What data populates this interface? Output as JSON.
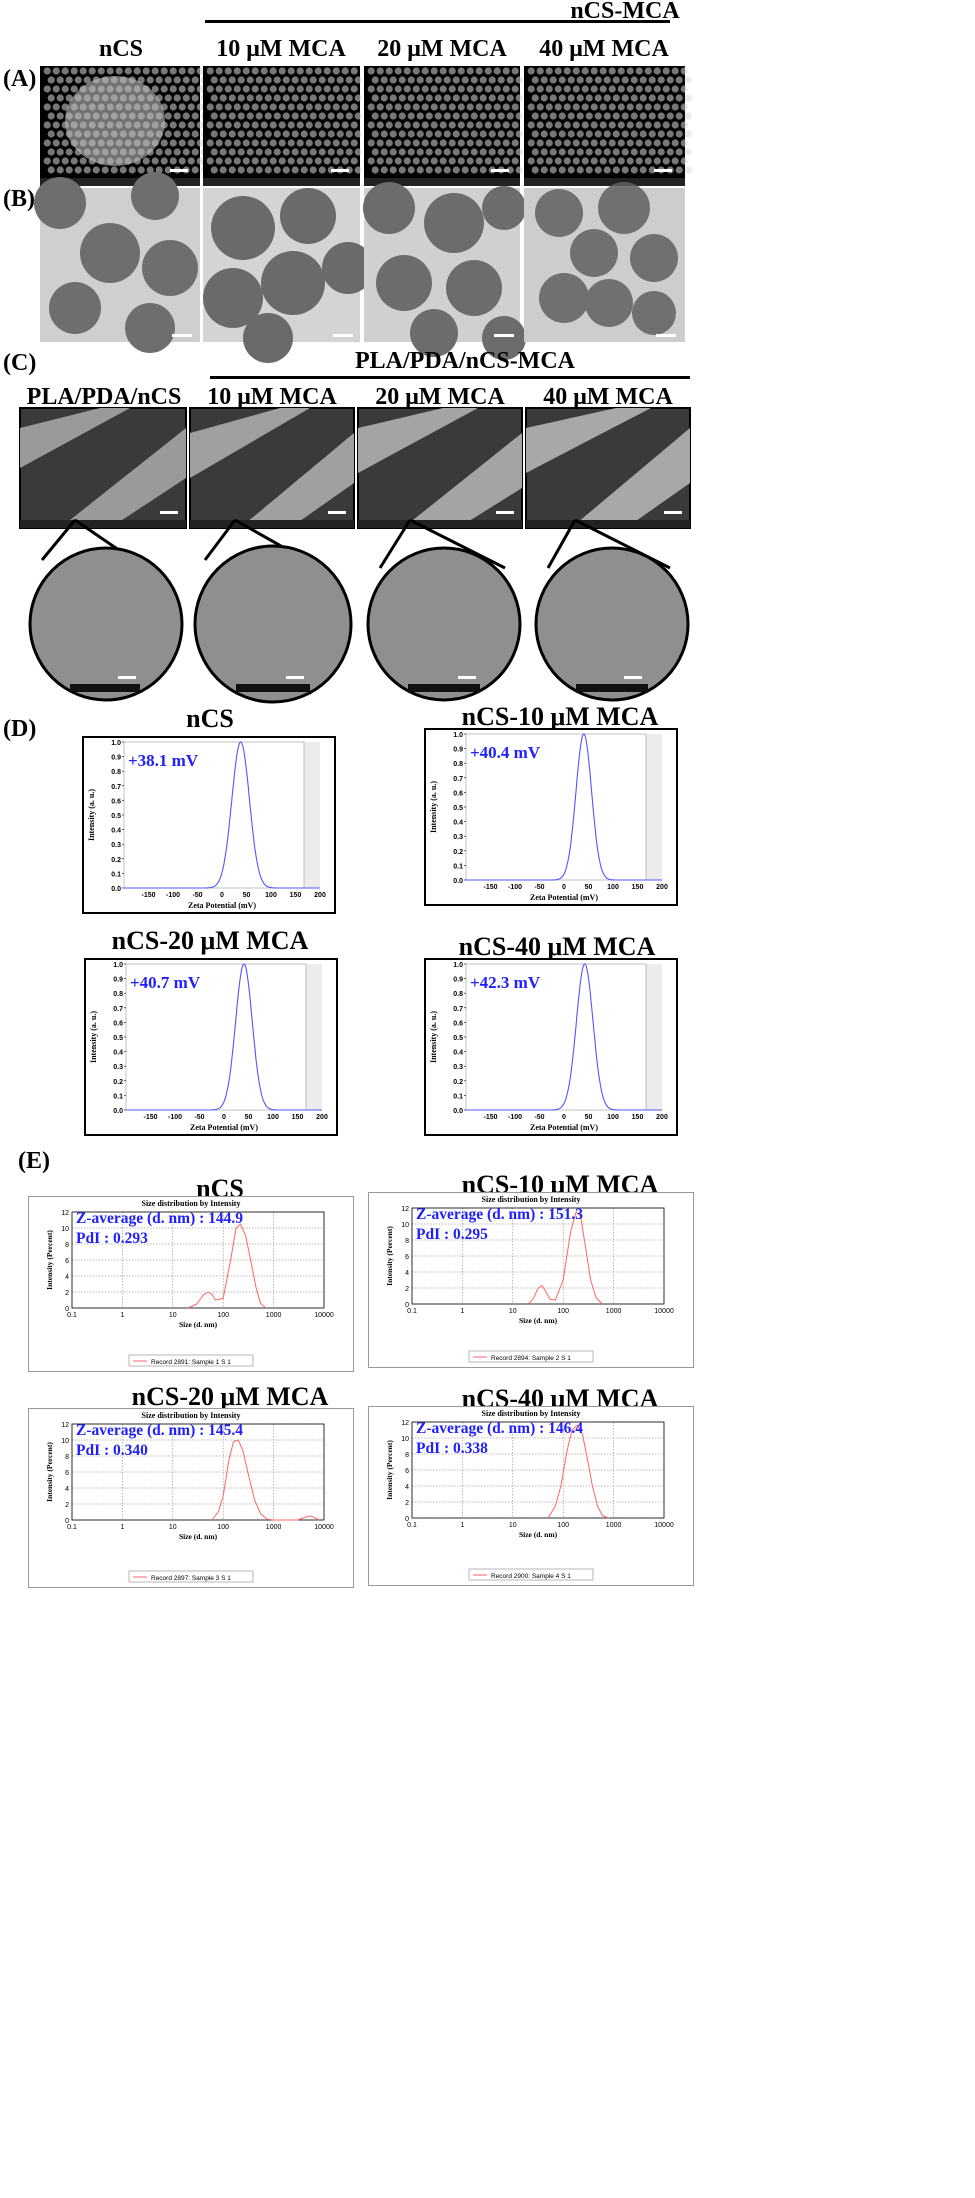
{
  "headers": {
    "group_top": "nCS-MCA",
    "group_c": "PLA/PDA/nCS-MCA",
    "row_ab_cols": [
      "nCS",
      "10 μM MCA",
      "20 μM MCA",
      "40 μM MCA"
    ],
    "row_c_cols": [
      "PLA/PDA/nCS",
      "10 μM MCA",
      "20 μM MCA",
      "40 μM MCA"
    ]
  },
  "panel_labels": {
    "a": "(A)",
    "b": "(B)",
    "c": "(C)",
    "d": "(D)",
    "e": "(E)"
  },
  "zeta": {
    "xlabel": "Zeta Potential (mV)",
    "ylabel": "Intensity (a. u.)",
    "xticks": [
      -150,
      -100,
      -50,
      0,
      50,
      100,
      150,
      200
    ],
    "yticks": [
      0.0,
      0.1,
      0.2,
      0.3,
      0.4,
      0.5,
      0.6,
      0.7,
      0.8,
      0.9,
      1.0
    ]
  },
  "dls": {
    "plot_title": "Size distribution by Intensity",
    "xlabel": "Size (d. nm)",
    "ylabel": "Intensity (Percent)",
    "xticks": [
      "0.1",
      "1",
      "10",
      "100",
      "1000",
      "10000"
    ],
    "yticks": [
      0,
      2,
      4,
      6,
      8,
      10,
      12
    ]
  },
  "chart_data": [
    {
      "type": "line",
      "title": "nCS",
      "annotation": "+38.1 mV",
      "xlabel": "Zeta Potential (mV)",
      "ylabel": "Intensity (a. u.)",
      "xlim": [
        -200,
        200
      ],
      "ylim": [
        0,
        1.0
      ],
      "peak": 38.1,
      "width": 18
    },
    {
      "type": "line",
      "title": "nCS-10 μM MCA",
      "annotation": "+40.4 mV",
      "xlabel": "Zeta Potential (mV)",
      "ylabel": "Intensity (a. u.)",
      "xlim": [
        -200,
        200
      ],
      "ylim": [
        0,
        1.0
      ],
      "peak": 40.4,
      "width": 16
    },
    {
      "type": "line",
      "title": "nCS-20 μM MCA",
      "annotation": "+40.7 mV",
      "xlabel": "Zeta Potential (mV)",
      "ylabel": "Intensity (a. u.)",
      "xlim": [
        -200,
        200
      ],
      "ylim": [
        0,
        1.0
      ],
      "peak": 40.7,
      "width": 17
    },
    {
      "type": "line",
      "title": "nCS-40 μM MCA",
      "annotation": "+42.3 mV",
      "xlabel": "Zeta Potential (mV)",
      "ylabel": "Intensity (a. u.)",
      "xlim": [
        -200,
        200
      ],
      "ylim": [
        0,
        1.0
      ],
      "peak": 42.3,
      "width": 17
    },
    {
      "type": "line",
      "title": "nCS",
      "annotation_1": "Z-average (d. nm) : 144.9",
      "annotation_2": "PdI : 0.293",
      "legend": "Record 2891:  Sample 1 S 1",
      "xlabel": "Size (d. nm)",
      "ylabel": "Intensity (Percent)",
      "xscale": "log",
      "xlim": [
        0.1,
        10000
      ],
      "ylim": [
        0,
        12
      ],
      "x": [
        20,
        30,
        40,
        50,
        60,
        70,
        100,
        140,
        180,
        220,
        280,
        350,
        450,
        550,
        700
      ],
      "y": [
        0,
        0.5,
        1.6,
        2.0,
        1.7,
        1.0,
        1.2,
        6.0,
        10.0,
        10.5,
        9.0,
        6.0,
        2.5,
        0.6,
        0
      ]
    },
    {
      "type": "line",
      "title": "nCS-10 μM MCA",
      "annotation_1": "Z-average (d. nm) : 151.3",
      "annotation_2": "PdI : 0.295",
      "legend": "Record 2894:  Sample 2 S 1",
      "xlabel": "Size (d. nm)",
      "ylabel": "Intensity (Percent)",
      "xscale": "log",
      "xlim": [
        0.1,
        10000
      ],
      "ylim": [
        0,
        12
      ],
      "x": [
        20,
        25,
        32,
        38,
        45,
        55,
        70,
        100,
        140,
        180,
        220,
        280,
        350,
        450,
        600
      ],
      "y": [
        0,
        0.6,
        2.0,
        2.3,
        1.6,
        0.6,
        0.5,
        3.0,
        9.0,
        11.5,
        11.0,
        7.0,
        3.0,
        0.8,
        0
      ]
    },
    {
      "type": "line",
      "title": "nCS-20 μM MCA",
      "annotation_1": "Z-average (d. nm) : 145.4",
      "annotation_2": "PdI : 0.340",
      "legend": "Record 2897:  Sample 3 S 1",
      "xlabel": "Size (d. nm)",
      "ylabel": "Intensity (Percent)",
      "xscale": "log",
      "xlim": [
        0.1,
        10000
      ],
      "ylim": [
        0,
        12
      ],
      "x": [
        60,
        80,
        100,
        130,
        160,
        200,
        250,
        320,
        420,
        550,
        750,
        1000,
        3000,
        4500,
        5500,
        6500,
        8000
      ],
      "y": [
        0,
        1.0,
        3.0,
        7.5,
        9.8,
        10.0,
        8.5,
        5.5,
        2.5,
        0.8,
        0.1,
        0,
        0,
        0.4,
        0.5,
        0.3,
        0
      ]
    },
    {
      "type": "line",
      "title": "nCS-40 μM MCA",
      "annotation_1": "Z-average (d. nm) : 146.4",
      "annotation_2": "PdI : 0.338",
      "legend": "Record 2900:  Sample 4 S 1",
      "xlabel": "Size (d. nm)",
      "ylabel": "Intensity (Percent)",
      "xscale": "log",
      "xlim": [
        0.1,
        10000
      ],
      "ylim": [
        0,
        12
      ],
      "x": [
        50,
        70,
        90,
        120,
        150,
        190,
        240,
        300,
        380,
        480,
        600,
        800
      ],
      "y": [
        0,
        1.5,
        4.0,
        8.5,
        11.0,
        11.6,
        10.5,
        7.5,
        4.0,
        1.5,
        0.3,
        0
      ]
    }
  ]
}
